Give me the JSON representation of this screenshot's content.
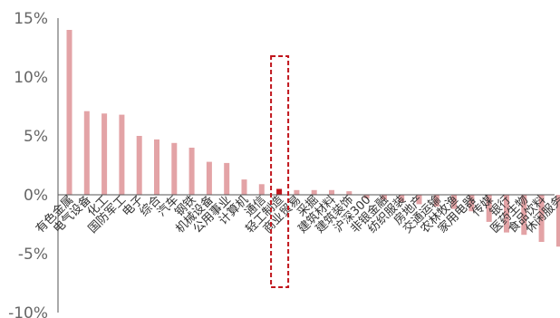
{
  "chart_data": {
    "type": "bar",
    "title": "",
    "xlabel": "",
    "ylabel": "",
    "ylim": [
      -10,
      15
    ],
    "yticks": [
      15,
      10,
      5,
      0,
      -5,
      -10
    ],
    "ytick_labels": [
      "15%",
      "10%",
      "5%",
      "0%",
      "-5%",
      "-10%"
    ],
    "grid": false,
    "bar_color": "#e3a3a6",
    "highlight_color": "#c0141b",
    "highlight_category": "轻工制造",
    "categories": [
      "有色金属",
      "电气设备",
      "化工",
      "国防军工",
      "电子",
      "综合",
      "汽车",
      "钢铁",
      "机械设备",
      "公用事业",
      "计算机",
      "通信",
      "轻工制造",
      "商业贸易",
      "采掘",
      "建筑材料",
      "建筑装饰",
      "沪深300",
      "非银金融",
      "纺织服装",
      "房地产",
      "交通运输",
      "农林牧渔",
      "家用电器",
      "传媒",
      "银行",
      "医药生物",
      "食品饮料",
      "休闲服务"
    ],
    "values": [
      14.0,
      7.1,
      6.9,
      6.8,
      5.0,
      4.7,
      4.4,
      4.0,
      2.8,
      2.7,
      1.3,
      0.9,
      0.5,
      0.4,
      0.4,
      0.4,
      0.3,
      -0.3,
      -0.4,
      -0.6,
      -0.8,
      -1.0,
      -1.2,
      -1.4,
      -2.3,
      -3.2,
      -3.4,
      -4.0,
      -4.4
    ]
  }
}
